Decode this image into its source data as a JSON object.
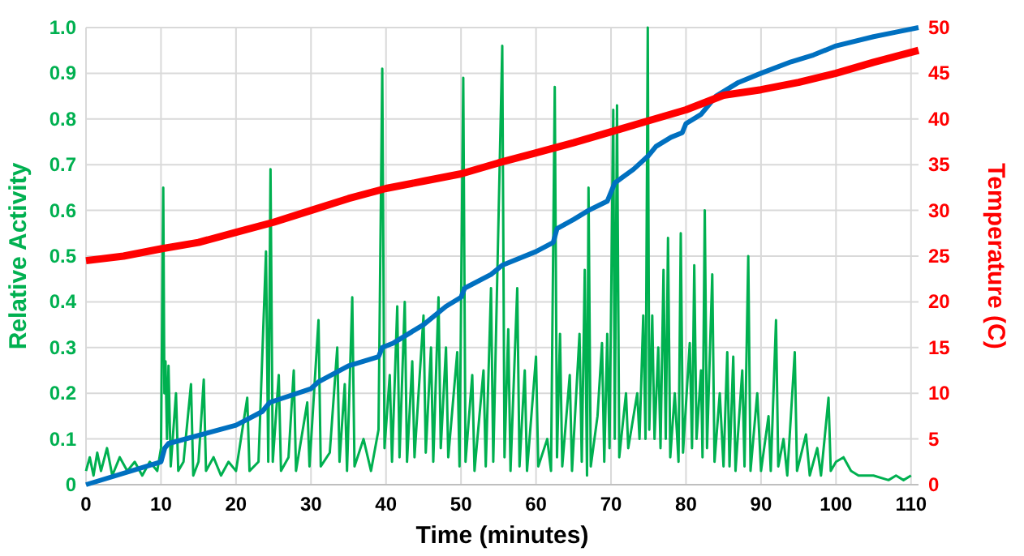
{
  "chart_data": {
    "type": "line",
    "xlabel": "Time (minutes)",
    "ylabel": "Relative Activity",
    "y2label": "Temperature (C)",
    "xlim": [
      0,
      111
    ],
    "xticks": [
      0,
      10,
      20,
      30,
      40,
      50,
      60,
      70,
      80,
      90,
      100,
      110
    ],
    "ylim": [
      0,
      1
    ],
    "yticks": [
      {
        "value": 0,
        "label": "0"
      },
      {
        "value": 0.1,
        "label": "0.1"
      },
      {
        "value": 0.2,
        "label": "0.2"
      },
      {
        "value": 0.3,
        "label": "0.3"
      },
      {
        "value": 0.4,
        "label": "0.4"
      },
      {
        "value": 0.5,
        "label": "0.5"
      },
      {
        "value": 0.6,
        "label": "0.6"
      },
      {
        "value": 0.7,
        "label": "0.7"
      },
      {
        "value": 0.8,
        "label": "0.8"
      },
      {
        "value": 0.9,
        "label": "0.9"
      },
      {
        "value": 1,
        "label": "1.0"
      }
    ],
    "y2lim": [
      0,
      50
    ],
    "y2ticks": [
      0,
      5,
      10,
      15,
      20,
      25,
      30,
      35,
      40,
      45,
      50
    ],
    "grid": true,
    "marker": "none",
    "line_style": "solid",
    "series": [
      {
        "color": "#00b050",
        "x": [
          0,
          0.5,
          1,
          1.5,
          2,
          2.8,
          3.5,
          4.5,
          5.5,
          6.5,
          7.5,
          8.5,
          9.5,
          10,
          10.3,
          10.45,
          10.6,
          10.8,
          11,
          11.3,
          12,
          12.3,
          13,
          14,
          14.3,
          15,
          15.7,
          16,
          17,
          18,
          19,
          20,
          21.5,
          21.8,
          23,
          24,
          24.3,
          24.6,
          24.9,
          25.7,
          26,
          27,
          27.7,
          28,
          29.5,
          29.8,
          31,
          31.3,
          32.5,
          33.5,
          33.8,
          34.5,
          34.8,
          35.5,
          35.8,
          37,
          38,
          39,
          39.5,
          39.8,
          40.5,
          40.8,
          41.5,
          41.8,
          42.5,
          42.8,
          43.5,
          43.8,
          45,
          45.3,
          46,
          46.3,
          47,
          47.3,
          48,
          48.3,
          49.5,
          49.8,
          50.3,
          50.6,
          51.5,
          51.8,
          53,
          53.3,
          54,
          54.3,
          55.5,
          55.8,
          56.3,
          56.6,
          57.5,
          57.8,
          58.5,
          58.8,
          60,
          60.3,
          61.5,
          62,
          62.5,
          62.8,
          63.2,
          63.5,
          64.5,
          64.8,
          65.8,
          66.1,
          66.5,
          66.8,
          67,
          67.3,
          68.2,
          68.8,
          69.1,
          69.5,
          69.8,
          70.3,
          70.5,
          70.8,
          71.1,
          72,
          72.3,
          73.5,
          73.8,
          74.3,
          74.6,
          74.9,
          75.1,
          75.5,
          75.8,
          76.3,
          76.6,
          77,
          77.3,
          77.6,
          77.9,
          78.5,
          79,
          79.3,
          79.6,
          80.5,
          80.8,
          81.1,
          81.4,
          82,
          82.2,
          82.5,
          82.8,
          83.5,
          83.8,
          84.5,
          85,
          85.5,
          85.8,
          86.3,
          86.6,
          87.5,
          87.8,
          88.3,
          88.6,
          89.5,
          90,
          91,
          91.3,
          92,
          92.3,
          93,
          93.5,
          94.5,
          94.8,
          96,
          96.5,
          97.5,
          98,
          99,
          99.3,
          100,
          101,
          102,
          103,
          105,
          107,
          108,
          109,
          110
        ],
        "values": [
          0.03,
          0.06,
          0.02,
          0.07,
          0.03,
          0.08,
          0.02,
          0.06,
          0.03,
          0.05,
          0.02,
          0.05,
          0.03,
          0.08,
          0.65,
          0.2,
          0.27,
          0.1,
          0.26,
          0.04,
          0.2,
          0.03,
          0.05,
          0.22,
          0.02,
          0.05,
          0.23,
          0.03,
          0.06,
          0.02,
          0.05,
          0.03,
          0.19,
          0.03,
          0.05,
          0.51,
          0.05,
          0.69,
          0.05,
          0.24,
          0.03,
          0.06,
          0.25,
          0.03,
          0.18,
          0.04,
          0.36,
          0.04,
          0.07,
          0.3,
          0.05,
          0.22,
          0.03,
          0.41,
          0.04,
          0.1,
          0.03,
          0.12,
          0.91,
          0.08,
          0.24,
          0.05,
          0.39,
          0.06,
          0.4,
          0.05,
          0.27,
          0.06,
          0.37,
          0.07,
          0.3,
          0.05,
          0.41,
          0.08,
          0.3,
          0.06,
          0.29,
          0.04,
          0.89,
          0.05,
          0.24,
          0.03,
          0.25,
          0.04,
          0.43,
          0.05,
          0.96,
          0.06,
          0.34,
          0.03,
          0.43,
          0.04,
          0.25,
          0.03,
          0.28,
          0.04,
          0.1,
          0.03,
          0.87,
          0.06,
          0.33,
          0.04,
          0.24,
          0.03,
          0.33,
          0.05,
          0.47,
          0.02,
          0.65,
          0.04,
          0.15,
          0.31,
          0.05,
          0.33,
          0.08,
          0.82,
          0.1,
          0.83,
          0.06,
          0.2,
          0.08,
          0.2,
          0.1,
          0.37,
          0.1,
          1.0,
          0.12,
          0.37,
          0.1,
          0.3,
          0.08,
          0.47,
          0.1,
          0.54,
          0.06,
          0.2,
          0.05,
          0.55,
          0.07,
          0.31,
          0.08,
          0.48,
          0.1,
          0.25,
          0.06,
          0.6,
          0.08,
          0.46,
          0.05,
          0.2,
          0.04,
          0.29,
          0.04,
          0.28,
          0.03,
          0.25,
          0.04,
          0.5,
          0.03,
          0.2,
          0.03,
          0.15,
          0.03,
          0.36,
          0.04,
          0.1,
          0.02,
          0.29,
          0.03,
          0.11,
          0.02,
          0.08,
          0.02,
          0.19,
          0.03,
          0.05,
          0.06,
          0.03,
          0.02,
          0.02,
          0.01,
          0.02,
          0.01,
          0.02
        ]
      },
      {
        "color": "#0070c0",
        "x": [
          0,
          10,
          10.5,
          11,
          20,
          23.5,
          24.5,
          30,
          31,
          35,
          39,
          39.5,
          41,
          45,
          48,
          50,
          50.5,
          54,
          55.5,
          60,
          62.3,
          62.8,
          65,
          67,
          69.5,
          70.5,
          73,
          75,
          76,
          78,
          79.5,
          80,
          82,
          84,
          87,
          90,
          94,
          97,
          100,
          105,
          108,
          111
        ],
        "values": [
          0,
          0.05,
          0.08,
          0.09,
          0.13,
          0.16,
          0.18,
          0.21,
          0.225,
          0.26,
          0.28,
          0.3,
          0.31,
          0.35,
          0.39,
          0.41,
          0.43,
          0.46,
          0.48,
          0.51,
          0.53,
          0.56,
          0.58,
          0.6,
          0.62,
          0.66,
          0.69,
          0.72,
          0.74,
          0.76,
          0.77,
          0.79,
          0.81,
          0.85,
          0.88,
          0.9,
          0.925,
          0.94,
          0.96,
          0.98,
          0.99,
          1.0
        ]
      },
      {
        "color": "#ff0000",
        "axis": "y2",
        "x": [
          0,
          5,
          10,
          15,
          20,
          25,
          30,
          35,
          40,
          45,
          50,
          55,
          60,
          65,
          70,
          75,
          80,
          85,
          90,
          95,
          100,
          105,
          111
        ],
        "values": [
          24.5,
          25,
          25.8,
          26.5,
          27.6,
          28.7,
          30,
          31.3,
          32.4,
          33.2,
          34,
          35.2,
          36.3,
          37.4,
          38.6,
          39.8,
          41,
          42.6,
          43.2,
          44,
          45,
          46.2,
          47.5
        ]
      }
    ]
  }
}
